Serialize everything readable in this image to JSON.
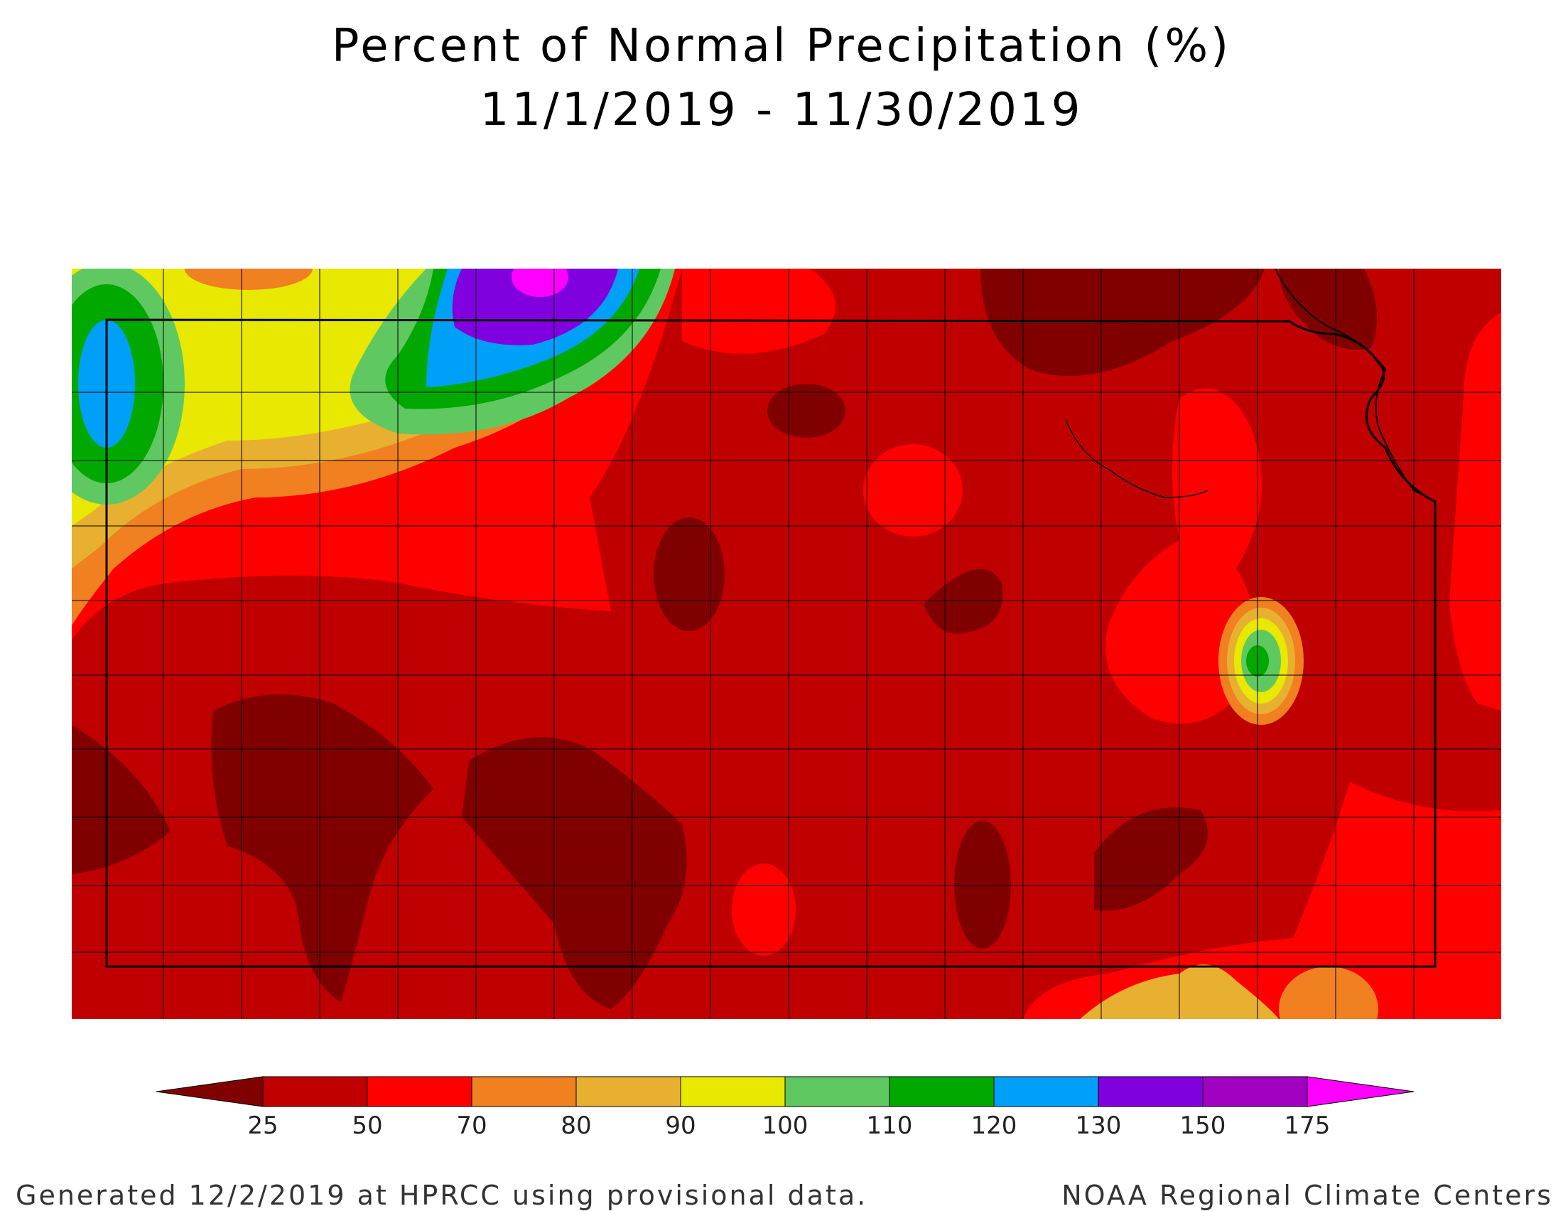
{
  "title_line1": "Percent of Normal Precipitation (%)",
  "title_line2": "11/1/2019 - 11/30/2019",
  "legend": {
    "ticks": [
      "25",
      "50",
      "70",
      "80",
      "90",
      "100",
      "110",
      "120",
      "130",
      "150",
      "175"
    ],
    "colors": [
      "#800000",
      "#c00000",
      "#ff0000",
      "#f08020",
      "#e8b030",
      "#e8e800",
      "#60c860",
      "#00a800",
      "#00a0f8",
      "#8000e0",
      "#a000c0",
      "#ff00ff"
    ]
  },
  "footer_left": "Generated 12/2/2019 at HPRCC using provisional data.",
  "footer_right": "NOAA Regional Climate Centers"
}
